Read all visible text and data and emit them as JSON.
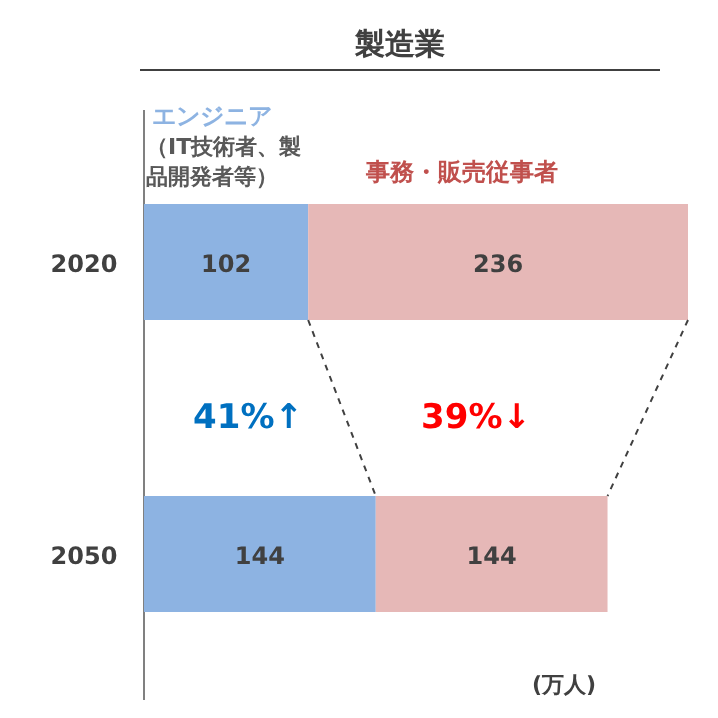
{
  "chart_data": {
    "type": "bar",
    "orientation": "horizontal",
    "stacked": true,
    "title": "製造業",
    "categories": [
      "2020",
      "2050"
    ],
    "series": [
      {
        "name": "エンジニア",
        "color": "#8db3e2",
        "values": [
          102,
          144
        ]
      },
      {
        "name": "事務・販売従事者",
        "color": "#e6b8b7",
        "values": [
          236,
          144
        ]
      }
    ],
    "data_labels": true,
    "annotations": [
      "（IT技術者、製品開発者等）",
      "41%↑",
      "39%↓",
      "(万人)"
    ]
  }
}
